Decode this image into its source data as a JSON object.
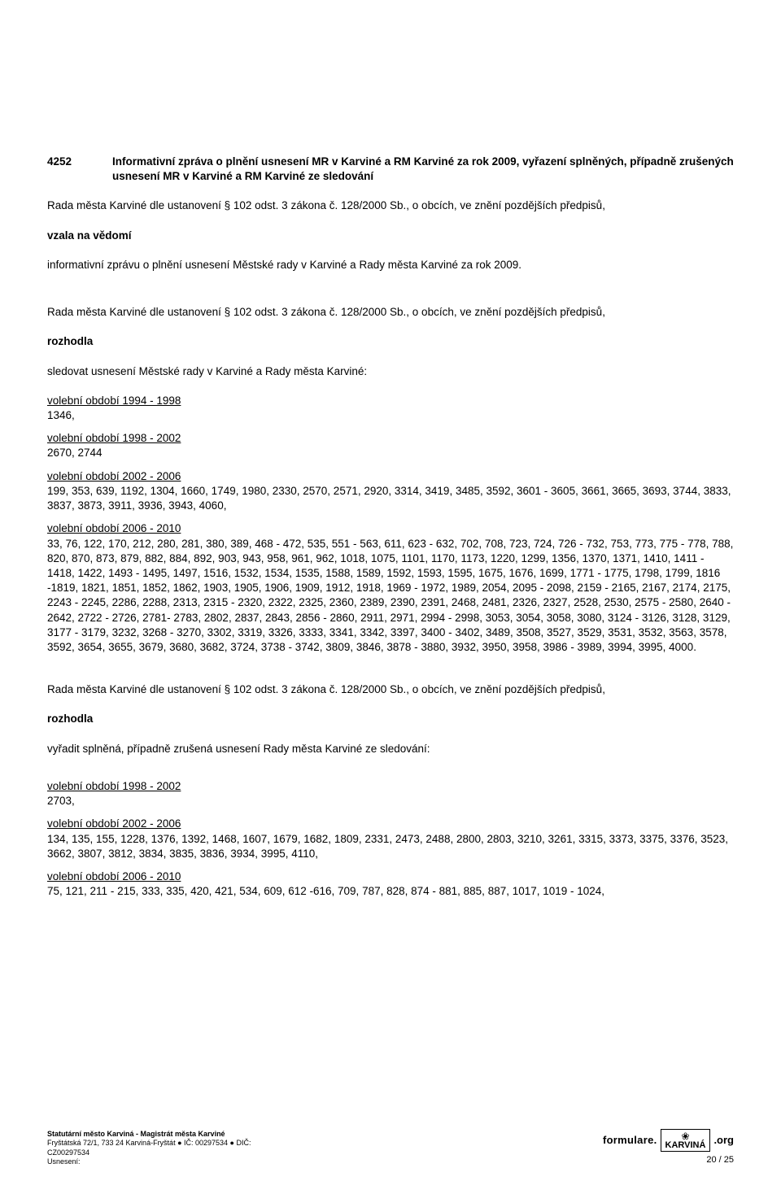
{
  "item": {
    "number": "4252",
    "title": "Informativní zpráva o plnění usnesení MR v Karviné a RM Karviné za rok 2009, vyřazení splněných, případně zrušených usnesení MR v Karviné a RM Karviné ze sledování"
  },
  "block1": {
    "rada": "Rada města Karviné dle ustanovení § 102 odst. 3 zákona č. 128/2000 Sb., o obcích, ve znění pozdějších předpisů,",
    "action": "vzala na vědomí",
    "body": "informativní zprávu o plnění usnesení Městské rady v Karviné a Rady města Karviné za rok 2009."
  },
  "block2": {
    "rada": "Rada města Karviné dle ustanovení § 102 odst. 3 zákona č. 128/2000 Sb., o obcích, ve znění pozdějších předpisů,",
    "action": "rozhodla",
    "body": "sledovat usnesení Městské rady v Karviné a Rady města Karviné:",
    "periods": [
      {
        "label": "volební období 1994 - 1998",
        "values": "1346,"
      },
      {
        "label": "volební období 1998 - 2002",
        "values": "2670, 2744"
      },
      {
        "label": "volební období 2002 - 2006",
        "values": "199, 353, 639, 1192, 1304, 1660, 1749, 1980, 2330, 2570, 2571, 2920, 3314, 3419, 3485, 3592, 3601 - 3605, 3661, 3665, 3693, 3744, 3833, 3837, 3873, 3911, 3936, 3943, 4060,"
      },
      {
        "label": "volební období 2006 - 2010",
        "values": "33, 76, 122, 170, 212, 280, 281, 380, 389, 468 - 472, 535, 551 - 563, 611, 623 - 632, 702, 708, 723, 724, 726 - 732, 753, 773, 775 - 778, 788, 820, 870, 873, 879, 882, 884, 892, 903, 943, 958, 961, 962, 1018, 1075, 1101, 1170, 1173, 1220, 1299, 1356, 1370, 1371, 1410, 1411 - 1418, 1422, 1493 - 1495, 1497, 1516, 1532, 1534, 1535, 1588, 1589, 1592, 1593, 1595, 1675, 1676, 1699, 1771 - 1775, 1798, 1799, 1816 -1819, 1821, 1851, 1852, 1862, 1903, 1905, 1906, 1909, 1912, 1918, 1969 - 1972, 1989, 2054, 2095 - 2098, 2159 - 2165, 2167, 2174, 2175, 2243 - 2245, 2286, 2288, 2313, 2315 - 2320, 2322, 2325, 2360, 2389, 2390, 2391, 2468, 2481, 2326, 2327, 2528, 2530, 2575 - 2580, 2640 - 2642, 2722 - 2726, 2781- 2783, 2802, 2837, 2843, 2856 - 2860, 2911, 2971, 2994 - 2998, 3053, 3054, 3058, 3080, 3124 - 3126, 3128, 3129, 3177 - 3179, 3232, 3268 - 3270, 3302, 3319, 3326, 3333, 3341, 3342, 3397, 3400 - 3402, 3489, 3508, 3527, 3529, 3531, 3532, 3563, 3578, 3592, 3654, 3655, 3679, 3680, 3682, 3724, 3738 - 3742, 3809, 3846, 3878 - 3880, 3932, 3950, 3958, 3986 - 3989, 3994, 3995, 4000."
      }
    ]
  },
  "block3": {
    "rada": "Rada města Karviné dle ustanovení § 102 odst. 3 zákona č. 128/2000 Sb., o obcích, ve znění pozdějších předpisů,",
    "action": "rozhodla",
    "body": "vyřadit splněná, případně zrušená usnesení Rady města Karviné ze sledování:",
    "periods": [
      {
        "label": "volební období 1998 - 2002",
        "values": "2703,"
      },
      {
        "label": "volební období 2002 - 2006",
        "values": "134, 135, 155, 1228, 1376, 1392, 1468, 1607, 1679, 1682, 1809, 2331, 2473, 2488, 2800, 2803, 3210, 3261, 3315, 3373, 3375, 3376, 3523, 3662, 3807, 3812, 3834, 3835, 3836, 3934, 3995, 4110,"
      },
      {
        "label": "volební období 2006 - 2010",
        "values": "75, 121, 211 - 215, 333, 335, 420, 421, 534, 609, 612 -616, 709, 787, 828, 874 - 881, 885, 887, 1017, 1019 - 1024,"
      }
    ]
  },
  "footer": {
    "line1": "Statutární město Karviná - Magistrát města Karviné",
    "line2": "Fryštátská 72/1, 733 24 Karviná-Fryštát ● IČ: 00297534 ● DIČ:",
    "line3": "CZ00297534",
    "line4": "Usnesení:",
    "pagenum": "20 / 25",
    "logo_formulare": "formulare.",
    "logo_karvina": "KARVINÁ",
    "logo_org": ".org"
  }
}
